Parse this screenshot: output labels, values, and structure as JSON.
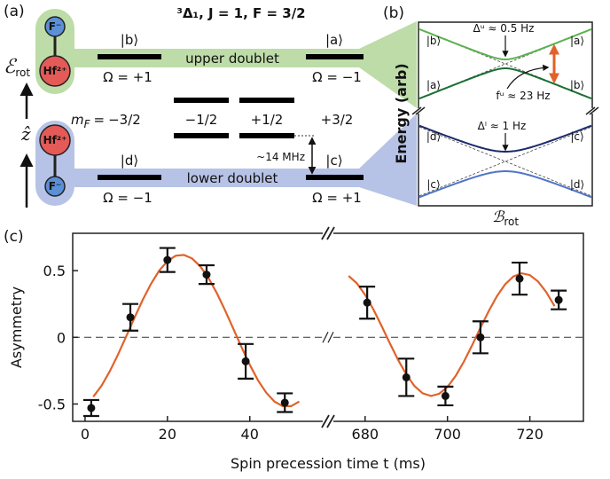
{
  "panel_a": {
    "label": "(a)",
    "title": "³Δ₁, J = 1, F = 3/2",
    "field_axis": {
      "base": "ℰ",
      "subscript": "rot"
    },
    "z_axis": "ẑ",
    "upper_molecule": {
      "top": "F⁻",
      "bottom": "Hf²⁺"
    },
    "lower_molecule": {
      "top": "Hf²⁺",
      "bottom": "F⁻"
    },
    "upper_doublet": {
      "name": "upper doublet",
      "left_state": "|b⟩",
      "right_state": "|a⟩",
      "left_omega": "Ω = +1",
      "right_omega": "Ω = −1"
    },
    "lower_doublet": {
      "name": "lower doublet",
      "left_state": "|d⟩",
      "right_state": "|c⟩",
      "left_omega": "Ω = −1",
      "right_omega": "Ω = +1"
    },
    "mF": {
      "symbol": "m",
      "subscript": "F",
      "relation": "=",
      "values": [
        "−3/2",
        "−1/2",
        "+1/2",
        "+3/2"
      ]
    },
    "splitting": "~14 MHz"
  },
  "panel_b": {
    "label": "(b)",
    "y_label": "Energy (arb)",
    "x_label": {
      "base": "ℬ",
      "subscript": "rot"
    },
    "upper_gap": "Δᵘ ≈ 0.5 Hz",
    "frequency": "fᵘ ≈ 23 Hz",
    "lower_gap": "Δˡ ≈ 1 Hz",
    "upper_states": {
      "left_top": "|b⟩",
      "right_top": "|a⟩",
      "left_bottom": "|a⟩",
      "right_bottom": "|b⟩"
    },
    "lower_states": {
      "left_top": "|d⟩",
      "right_top": "|c⟩",
      "left_bottom": "|c⟩",
      "right_bottom": "|d⟩"
    }
  },
  "chart_data": {
    "type": "scatter",
    "label": "(c)",
    "x_label": "Spin precession time t (ms)",
    "y_label": "Asymmetry",
    "xlim_segments": [
      [
        -3,
        59
      ],
      [
        671,
        733
      ]
    ],
    "xticks": [
      0,
      20,
      40,
      680,
      700,
      720
    ],
    "ylim": [
      -0.63,
      0.78
    ],
    "yticks": [
      -0.5,
      0,
      0.5
    ],
    "reference_line": 0,
    "series": [
      {
        "color": "#111111",
        "x": [
          1.5,
          11,
          20,
          29.5,
          39,
          48.5,
          680.5,
          690,
          699.5,
          708,
          717.5,
          727
        ],
        "values": [
          -0.53,
          0.15,
          0.58,
          0.47,
          -0.18,
          -0.49,
          0.26,
          -0.3,
          -0.44,
          0.0,
          0.44,
          0.28
        ],
        "errors": [
          0.06,
          0.1,
          0.09,
          0.07,
          0.13,
          0.07,
          0.12,
          0.14,
          0.07,
          0.12,
          0.12,
          0.07
        ]
      }
    ],
    "fits": [
      {
        "color": "#e0622a",
        "x": [
          2,
          4,
          6,
          8,
          10,
          12,
          14,
          16,
          18,
          20,
          22,
          24,
          26,
          28,
          30,
          32,
          34,
          36,
          38,
          40,
          42,
          44,
          46,
          48,
          50,
          52
        ],
        "values": [
          -0.446,
          -0.363,
          -0.255,
          -0.129,
          0.008,
          0.147,
          0.281,
          0.401,
          0.499,
          0.571,
          0.612,
          0.618,
          0.591,
          0.531,
          0.443,
          0.331,
          0.202,
          0.064,
          -0.075,
          -0.206,
          -0.323,
          -0.415,
          -0.482,
          -0.516,
          -0.516,
          -0.482
        ]
      },
      {
        "color": "#e0622a",
        "x": [
          676,
          678,
          680,
          682,
          684,
          686,
          688,
          690,
          692,
          694,
          696,
          698,
          700,
          702,
          704,
          706,
          708,
          710,
          712,
          714,
          716,
          718,
          720,
          722,
          724,
          726
        ],
        "values": [
          0.46,
          0.405,
          0.319,
          0.21,
          0.085,
          -0.045,
          -0.169,
          -0.279,
          -0.365,
          -0.42,
          -0.44,
          -0.423,
          -0.372,
          -0.289,
          -0.181,
          -0.058,
          0.072,
          0.197,
          0.309,
          0.397,
          0.456,
          0.48,
          0.467,
          0.418,
          0.338,
          0.233
        ]
      }
    ]
  }
}
